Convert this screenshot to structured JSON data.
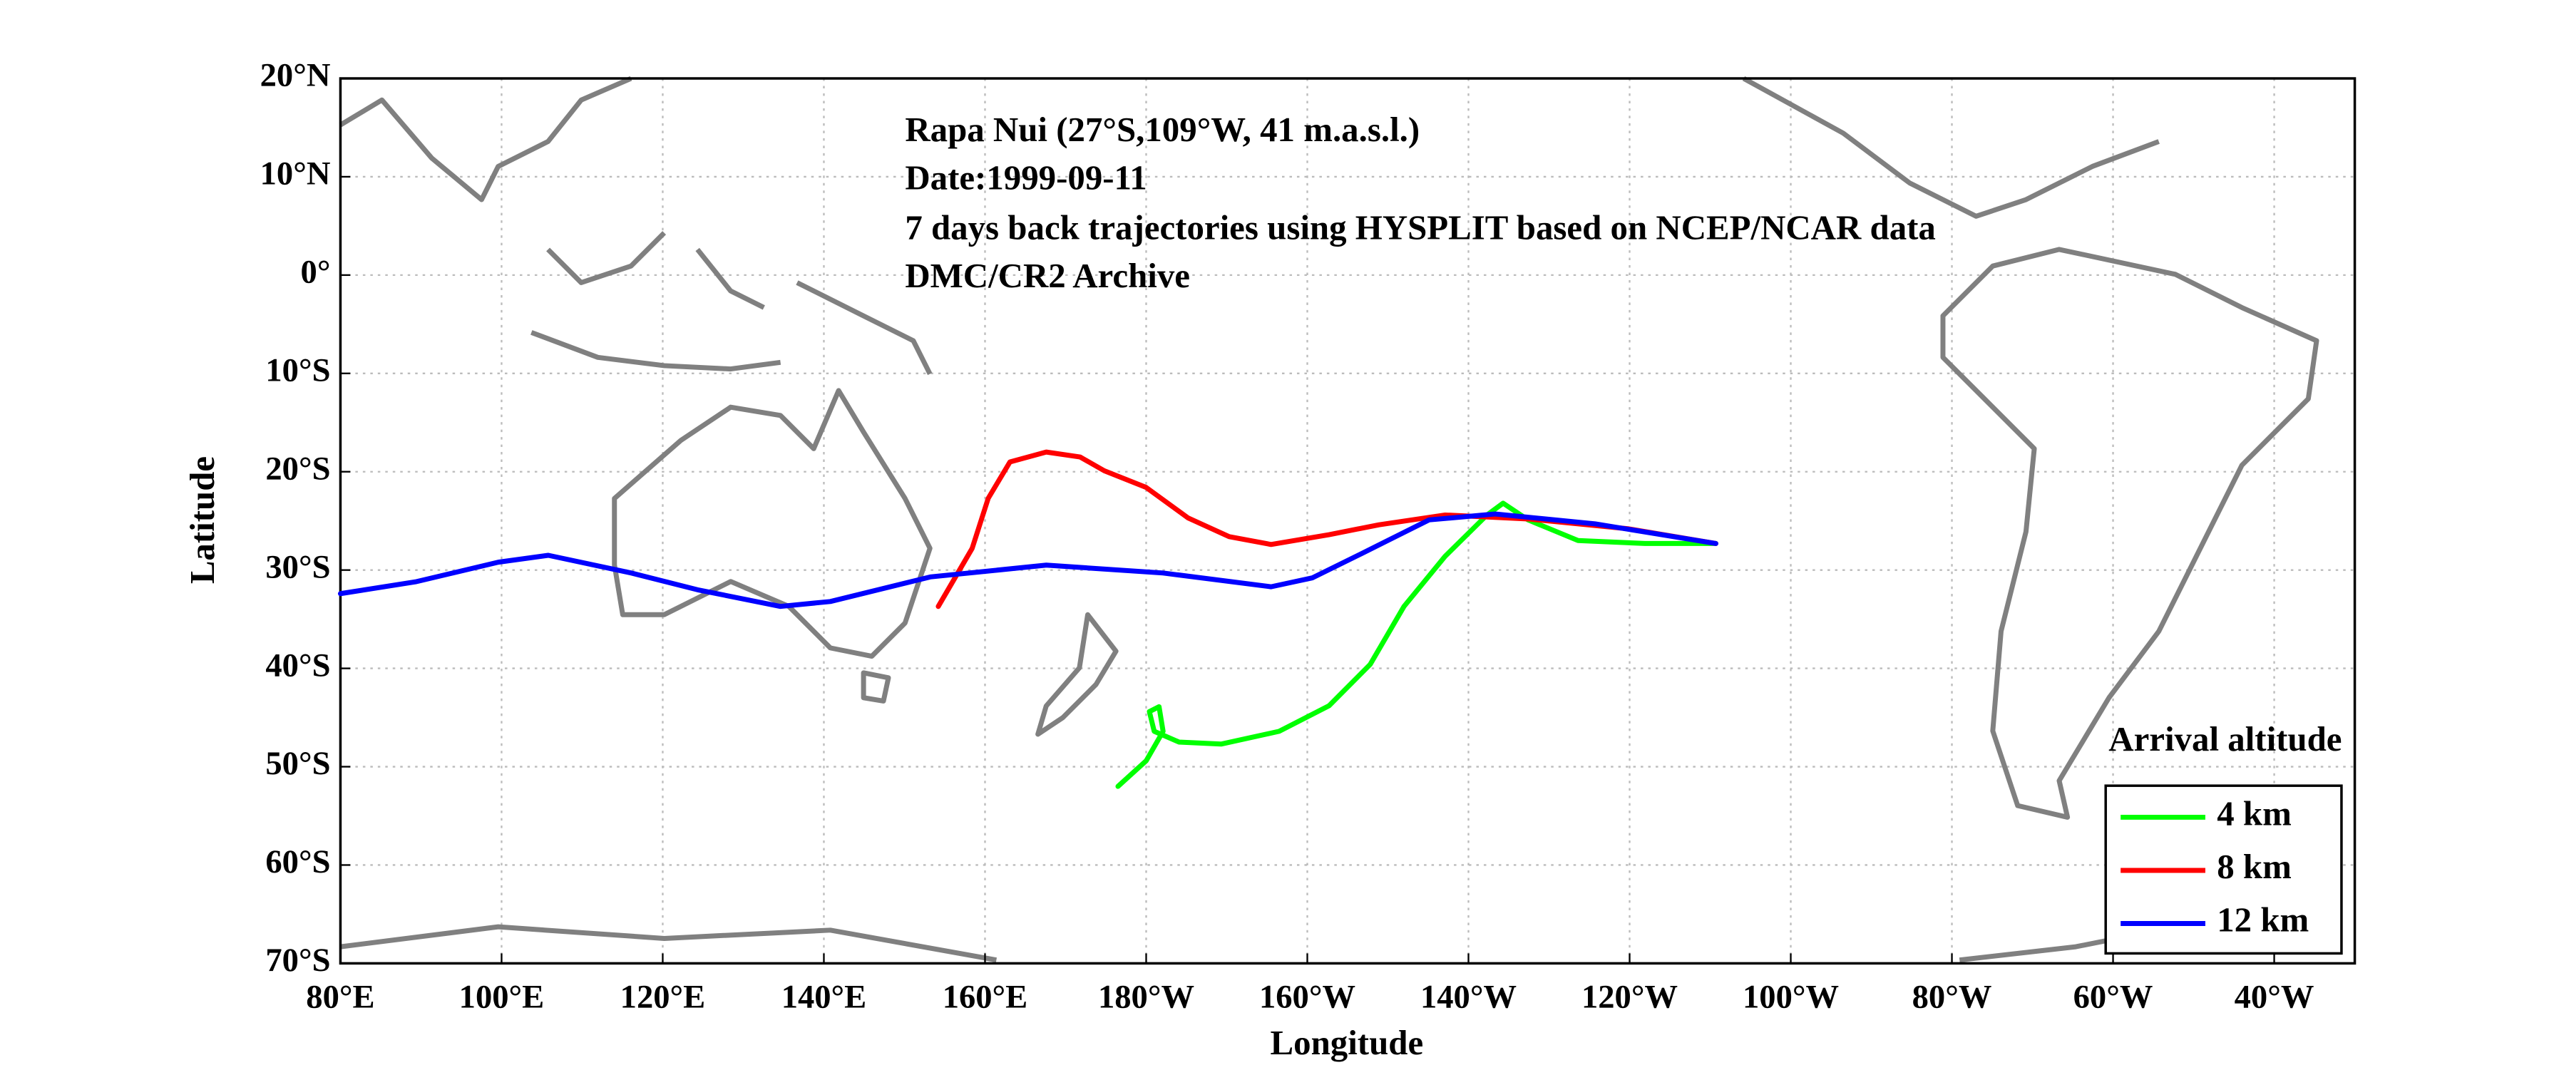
{
  "chart_data": {
    "type": "line",
    "title": "Rapa Nui (27°S,109°W, 41 m.a.s.l.)",
    "annotations": [
      "Date:1999-09-11",
      "7 days back trajectories using HYSPLIT based on NCEP/NCAR data",
      "DMC/CR2 Archive"
    ],
    "x_label": "Longitude",
    "y_label": "Latitude",
    "xlim": [
      80,
      330
    ],
    "ylim": [
      -70,
      20
    ],
    "xticks": [
      {
        "value": 80,
        "label": "80°E"
      },
      {
        "value": 100,
        "label": "100°E"
      },
      {
        "value": 120,
        "label": "120°E"
      },
      {
        "value": 140,
        "label": "140°E"
      },
      {
        "value": 160,
        "label": "160°E"
      },
      {
        "value": 180,
        "label": "180°W"
      },
      {
        "value": 200,
        "label": "160°W"
      },
      {
        "value": 220,
        "label": "140°W"
      },
      {
        "value": 240,
        "label": "120°W"
      },
      {
        "value": 260,
        "label": "100°W"
      },
      {
        "value": 280,
        "label": "80°W"
      },
      {
        "value": 300,
        "label": "60°W"
      },
      {
        "value": 320,
        "label": "40°W"
      }
    ],
    "yticks": [
      {
        "value": -70,
        "label": "70°S"
      },
      {
        "value": -60,
        "label": "60°S"
      },
      {
        "value": -50,
        "label": "50°S"
      },
      {
        "value": -40,
        "label": "40°S"
      },
      {
        "value": -30,
        "label": "30°S"
      },
      {
        "value": -20,
        "label": "20°S"
      },
      {
        "value": -10,
        "label": "10°S"
      },
      {
        "value": 0,
        "label": "0°"
      },
      {
        "value": 10,
        "label": "10°N"
      },
      {
        "value": 20,
        "label": "20°N"
      }
    ],
    "grid": true,
    "legend_title": "Arrival altitude",
    "legend_position": "lower right",
    "series": [
      {
        "name": "4 km",
        "color": "#00ff00",
        "x": [
          250.7,
          241.9,
          233.6,
          227.4,
          224.3,
          222.3,
          217.1,
          212.0,
          207.8,
          202.7,
          196.5,
          189.3,
          184.1,
          181.0,
          180.4,
          181.6,
          182.1,
          180.0,
          176.5
        ],
        "values": [
          -27.3,
          -27.3,
          -27.0,
          -24.9,
          -23.2,
          -24.4,
          -28.6,
          -33.7,
          -39.6,
          -43.8,
          -46.4,
          -47.7,
          -47.5,
          -46.4,
          -44.4,
          -43.9,
          -46.4,
          -49.4,
          -52.0
        ]
      },
      {
        "name": "8 km",
        "color": "#ff0000",
        "x": [
          250.7,
          239.8,
          227.4,
          217.1,
          208.9,
          202.7,
          195.5,
          190.3,
          185.2,
          180.0,
          174.8,
          171.8,
          167.6,
          163.1,
          160.4,
          158.4,
          154.2
        ],
        "values": [
          -27.3,
          -25.8,
          -24.8,
          -24.4,
          -25.4,
          -26.4,
          -27.4,
          -26.6,
          -24.7,
          -21.6,
          -19.9,
          -18.5,
          -18.0,
          -19.0,
          -22.7,
          -27.8,
          -33.7
        ]
      },
      {
        "name": "12 km",
        "color": "#0000ff",
        "x": [
          250.7,
          235.7,
          223.3,
          215.1,
          206.8,
          200.6,
          195.5,
          182.1,
          167.6,
          153.2,
          140.8,
          134.6,
          124.3,
          116.1,
          105.8,
          99.6,
          89.3,
          80.0
        ],
        "values": [
          -27.3,
          -25.3,
          -24.3,
          -24.9,
          -28.3,
          -30.8,
          -31.7,
          -30.3,
          -29.5,
          -30.7,
          -33.2,
          -33.7,
          -32.0,
          -30.3,
          -28.5,
          -29.2,
          -31.2,
          -32.4
        ]
      }
    ]
  }
}
